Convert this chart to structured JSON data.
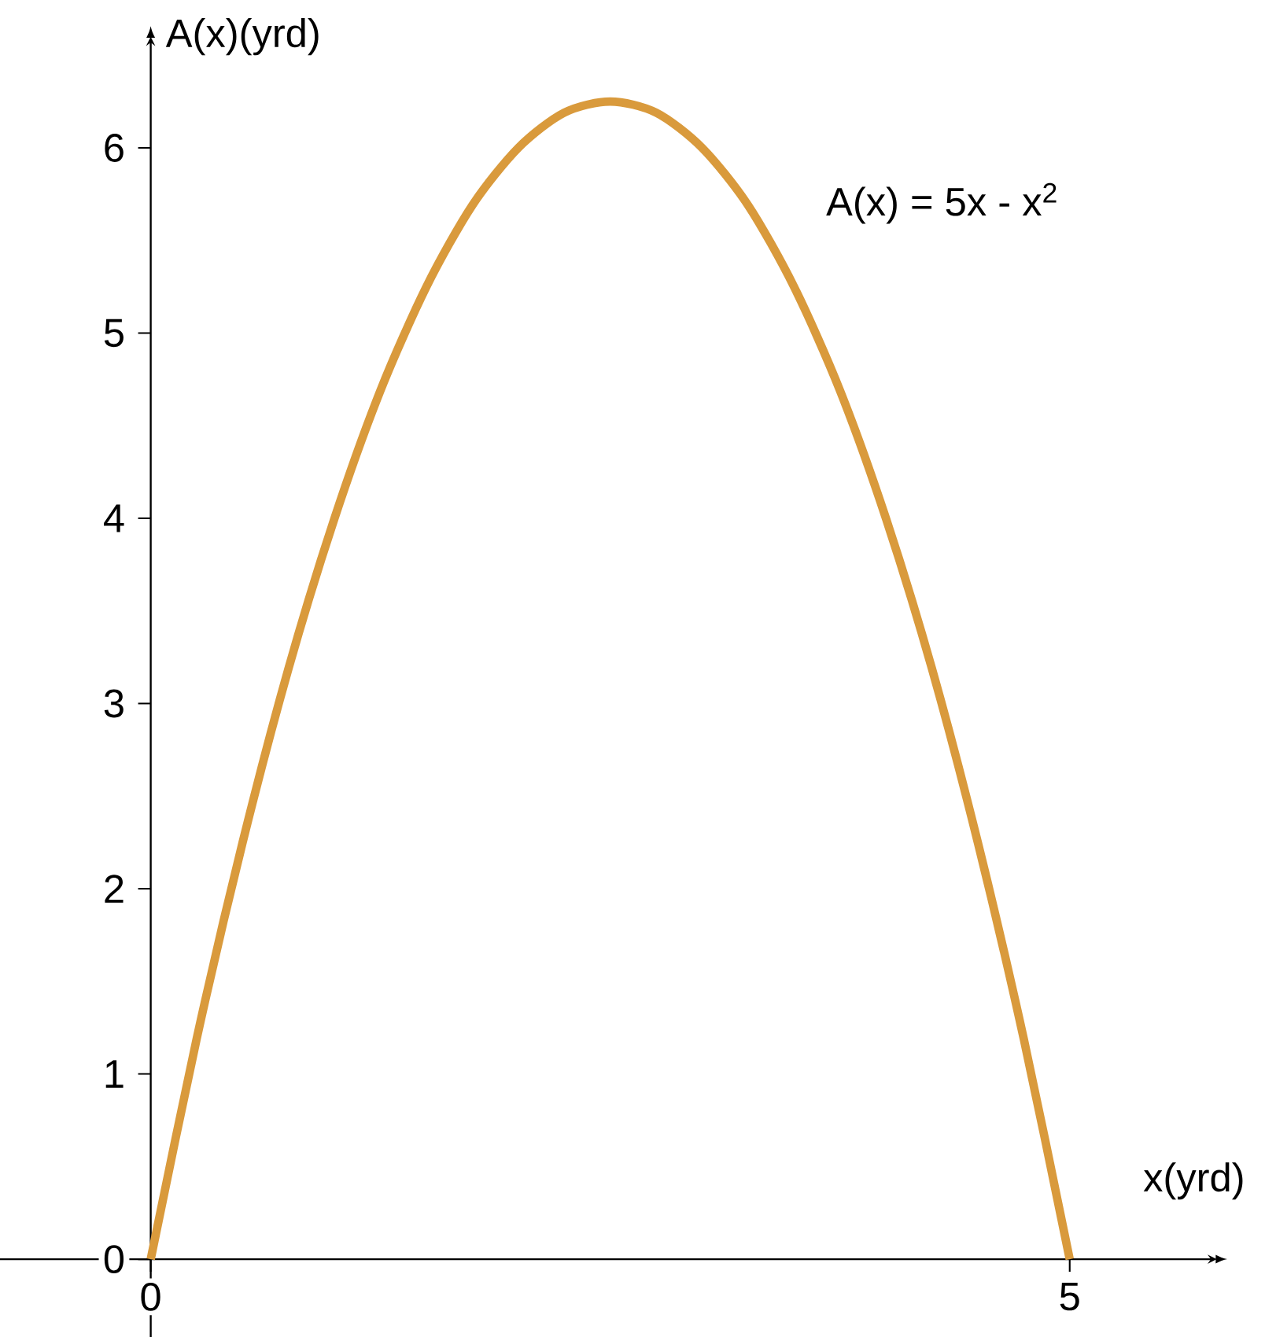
{
  "chart_data": {
    "type": "line",
    "xlabel": "x(yrd)",
    "ylabel": "A(x)(yrd)",
    "annotations": [
      "A(x) = 5x - x$^{2}$"
    ],
    "x": [
      0,
      0.25,
      0.5,
      0.75,
      1,
      1.25,
      1.5,
      1.75,
      2,
      2.25,
      2.5,
      2.75,
      3,
      3.25,
      3.5,
      3.75,
      4,
      4.25,
      4.5,
      4.75,
      5
    ],
    "values": [
      0,
      1.19,
      2.25,
      3.19,
      4,
      4.69,
      5.25,
      5.69,
      6,
      6.19,
      6.25,
      6.19,
      6,
      5.69,
      5.25,
      4.69,
      4,
      3.19,
      2.25,
      1.19,
      0
    ],
    "color": "#d99a3c",
    "xlim": [
      -0.82,
      5.8
    ],
    "ylim": [
      -0.42,
      6.6
    ],
    "xticks": [
      0,
      5
    ],
    "yticks": [
      0,
      1,
      2,
      3,
      4,
      5,
      6
    ]
  }
}
